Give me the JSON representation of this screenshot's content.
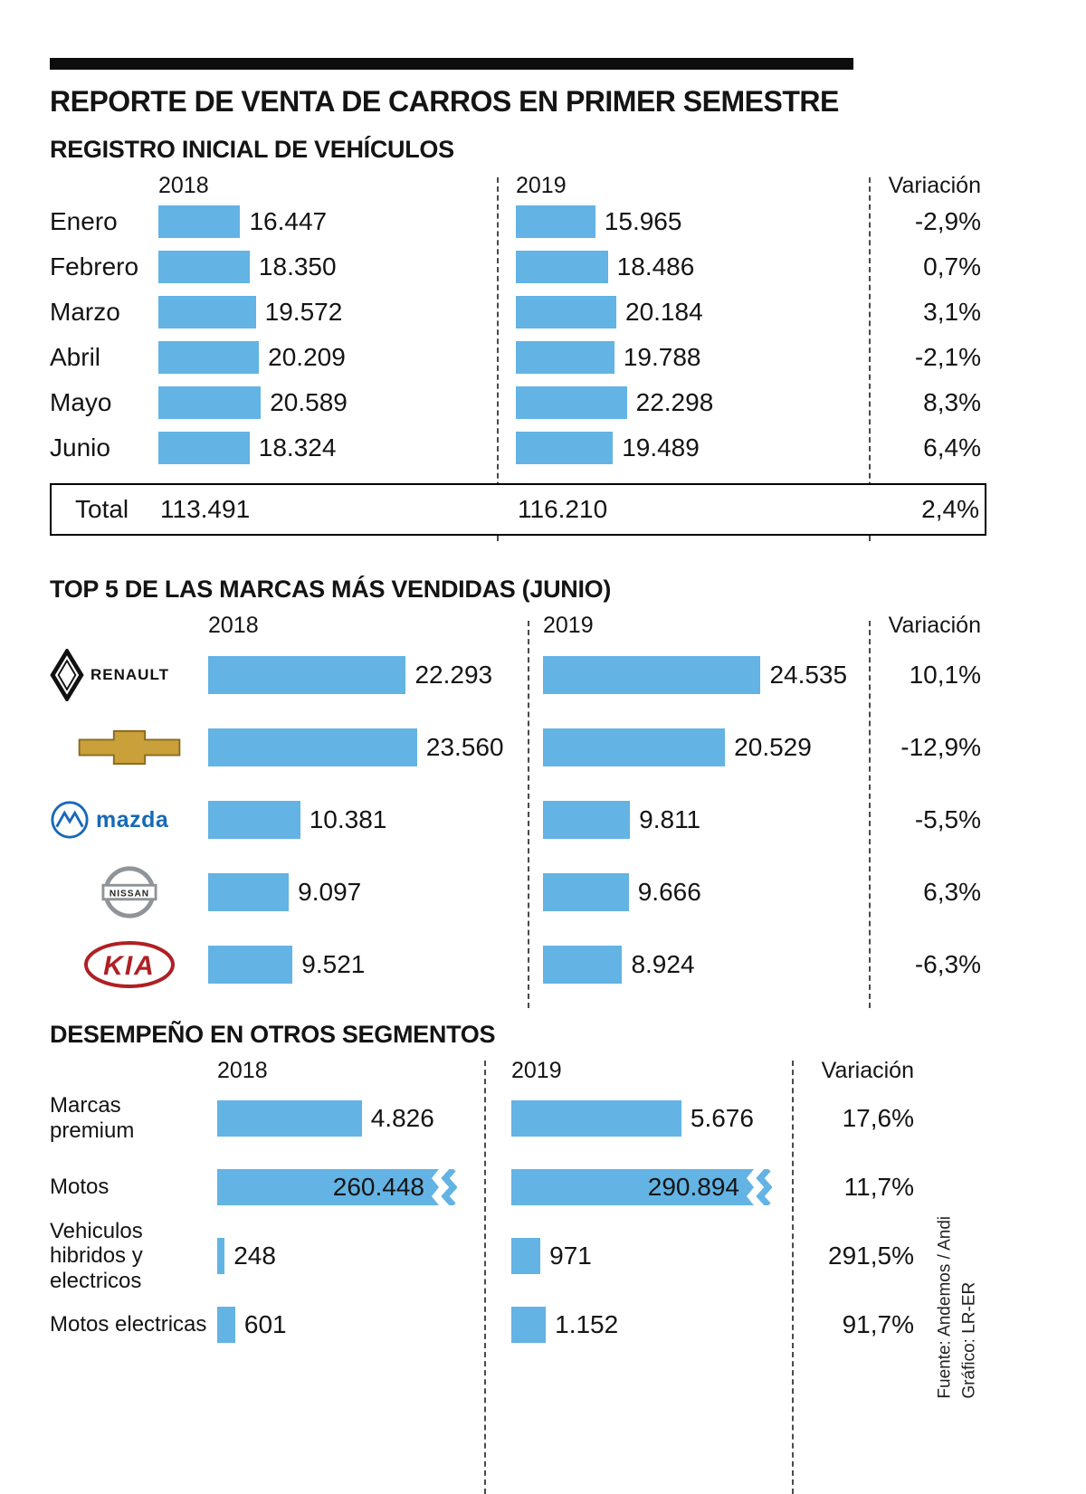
{
  "colors": {
    "bar": "#63b3e4",
    "kia_red": "#b01f24",
    "chevy_gold": "#c9a03a",
    "mazda_blue": "#1769b6",
    "nissan_gray": "#8f9499"
  },
  "title": "REPORTE DE VENTA DE CARROS EN PRIMER SEMESTRE",
  "registro": {
    "heading": "REGISTRO INICIAL DE VEHÍCULOS",
    "headers": {
      "y2018": "2018",
      "y2019": "2019",
      "variacion": "Variación"
    },
    "rows": [
      {
        "label": "Enero",
        "d2018": "16.447",
        "n2018": 16447,
        "d2019": "15.965",
        "n2019": 15965,
        "variacion": "-2,9%"
      },
      {
        "label": "Febrero",
        "d2018": "18.350",
        "n2018": 18350,
        "d2019": "18.486",
        "n2019": 18486,
        "variacion": "0,7%"
      },
      {
        "label": "Marzo",
        "d2018": "19.572",
        "n2018": 19572,
        "d2019": "20.184",
        "n2019": 20184,
        "variacion": "3,1%"
      },
      {
        "label": "Abril",
        "d2018": "20.209",
        "n2018": 20209,
        "d2019": "19.788",
        "n2019": 19788,
        "variacion": "-2,1%"
      },
      {
        "label": "Mayo",
        "d2018": "20.589",
        "n2018": 20589,
        "d2019": "22.298",
        "n2019": 22298,
        "variacion": "8,3%"
      },
      {
        "label": "Junio",
        "d2018": "18.324",
        "n2018": 18324,
        "d2019": "19.489",
        "n2019": 19489,
        "variacion": "6,4%"
      }
    ],
    "total": {
      "label": "Total",
      "d2018": "113.491",
      "d2019": "116.210",
      "variacion": "2,4%"
    }
  },
  "top5": {
    "heading": "TOP 5 DE LAS MARCAS MÁS VENDIDAS (JUNIO)",
    "headers": {
      "y2018": "2018",
      "y2019": "2019",
      "variacion": "Variación"
    },
    "logo_text": {
      "renault": "RENAULT",
      "mazda": "mazda",
      "nissan": "NISSAN",
      "kia": "KIA"
    },
    "rows": [
      {
        "brand": "Renault",
        "d2018": "22.293",
        "n2018": 22293,
        "d2019": "24.535",
        "n2019": 24535,
        "variacion": "10,1%"
      },
      {
        "brand": "Chevrolet",
        "d2018": "23.560",
        "n2018": 23560,
        "d2019": "20.529",
        "n2019": 20529,
        "variacion": "-12,9%"
      },
      {
        "brand": "Mazda",
        "d2018": "10.381",
        "n2018": 10381,
        "d2019": "9.811",
        "n2019": 9811,
        "variacion": "-5,5%"
      },
      {
        "brand": "Nissan",
        "d2018": "9.097",
        "n2018": 9097,
        "d2019": "9.666",
        "n2019": 9666,
        "variacion": "6,3%"
      },
      {
        "brand": "Kia",
        "d2018": "9.521",
        "n2018": 9521,
        "d2019": "8.924",
        "n2019": 8924,
        "variacion": "-6,3%"
      }
    ]
  },
  "otros": {
    "heading": "DESEMPEÑO EN OTROS SEGMENTOS",
    "headers": {
      "y2018": "2018",
      "y2019": "2019",
      "variacion": "Variación"
    },
    "rows": [
      {
        "label": "Marcas premium",
        "d2018": "4.826",
        "n2018": 4826,
        "d2019": "5.676",
        "n2019": 5676,
        "variacion": "17,6%"
      },
      {
        "label": "Motos",
        "d2018": "260.448",
        "n2018": 260448,
        "d2019": "290.894",
        "n2019": 290894,
        "variacion": "11,7%"
      },
      {
        "label": "Vehiculos hibridos y electricos",
        "d2018": "248",
        "n2018": 248,
        "d2019": "971",
        "n2019": 971,
        "variacion": "291,5%"
      },
      {
        "label": "Motos electricas",
        "d2018": "601",
        "n2018": 601,
        "d2019": "1.152",
        "n2019": 1152,
        "variacion": "91,7%"
      }
    ]
  },
  "source": {
    "line1": "Fuente: Andemos / Andi",
    "line2": "Gráfico: LR-ER"
  },
  "chart_data": [
    {
      "type": "bar",
      "title": "REGISTRO INICIAL DE VEHÍCULOS",
      "categories": [
        "Enero",
        "Febrero",
        "Marzo",
        "Abril",
        "Mayo",
        "Junio"
      ],
      "series": [
        {
          "name": "2018",
          "values": [
            16447,
            18350,
            19572,
            20209,
            20589,
            18324
          ]
        },
        {
          "name": "2019",
          "values": [
            15965,
            18486,
            20184,
            19788,
            22298,
            19489
          ]
        }
      ],
      "variation_pct": [
        -2.9,
        0.7,
        3.1,
        -2.1,
        8.3,
        6.4
      ],
      "totals": {
        "2018": 113491,
        "2019": 116210,
        "variation_pct": 2.4
      },
      "legend_position": "top",
      "grid": false
    },
    {
      "type": "bar",
      "title": "TOP 5 DE LAS MARCAS MÁS VENDIDAS (JUNIO)",
      "categories": [
        "Renault",
        "Chevrolet",
        "Mazda",
        "Nissan",
        "Kia"
      ],
      "series": [
        {
          "name": "2018",
          "values": [
            22293,
            23560,
            10381,
            9097,
            9521
          ]
        },
        {
          "name": "2019",
          "values": [
            24535,
            20529,
            9811,
            9666,
            8924
          ]
        }
      ],
      "variation_pct": [
        10.1,
        -12.9,
        -5.5,
        6.3,
        -6.3
      ],
      "legend_position": "top",
      "grid": false
    },
    {
      "type": "bar",
      "title": "DESEMPEÑO EN OTROS SEGMENTOS",
      "categories": [
        "Marcas premium",
        "Motos",
        "Vehiculos hibridos y electricos",
        "Motos electricas"
      ],
      "series": [
        {
          "name": "2018",
          "values": [
            4826,
            260448,
            248,
            601
          ]
        },
        {
          "name": "2019",
          "values": [
            5676,
            290894,
            971,
            1152
          ]
        }
      ],
      "variation_pct": [
        17.6,
        11.7,
        291.5,
        91.7
      ],
      "axis_break_on": "Motos",
      "legend_position": "top",
      "grid": false
    }
  ]
}
